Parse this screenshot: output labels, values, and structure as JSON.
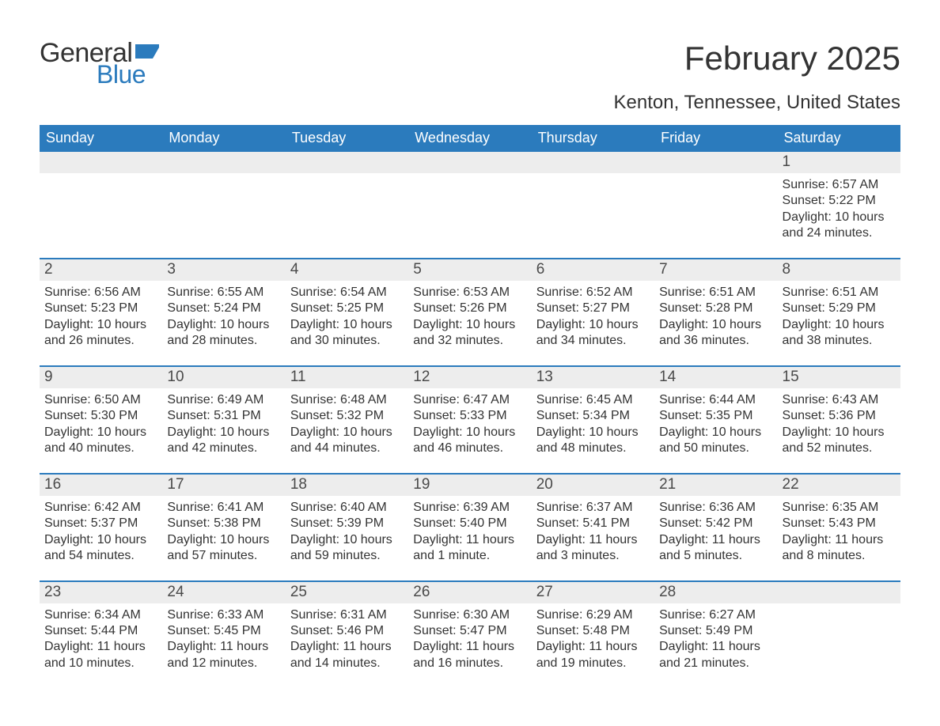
{
  "brand": {
    "part1": "General",
    "part2": "Blue"
  },
  "title": "February 2025",
  "subtitle": "Kenton, Tennessee, United States",
  "colors": {
    "header_bg": "#2b7bbd",
    "header_text": "#ffffff",
    "daynum_bg": "#ededed",
    "daynum_text": "#4a4a4a",
    "body_text": "#333333",
    "row_border": "#2b7bbd",
    "brand_blue": "#2b7bbd"
  },
  "dow": [
    "Sunday",
    "Monday",
    "Tuesday",
    "Wednesday",
    "Thursday",
    "Friday",
    "Saturday"
  ],
  "weeks": [
    [
      null,
      null,
      null,
      null,
      null,
      null,
      {
        "n": "1",
        "sr": "Sunrise: 6:57 AM",
        "ss": "Sunset: 5:22 PM",
        "dl": "Daylight: 10 hours and 24 minutes."
      }
    ],
    [
      {
        "n": "2",
        "sr": "Sunrise: 6:56 AM",
        "ss": "Sunset: 5:23 PM",
        "dl": "Daylight: 10 hours and 26 minutes."
      },
      {
        "n": "3",
        "sr": "Sunrise: 6:55 AM",
        "ss": "Sunset: 5:24 PM",
        "dl": "Daylight: 10 hours and 28 minutes."
      },
      {
        "n": "4",
        "sr": "Sunrise: 6:54 AM",
        "ss": "Sunset: 5:25 PM",
        "dl": "Daylight: 10 hours and 30 minutes."
      },
      {
        "n": "5",
        "sr": "Sunrise: 6:53 AM",
        "ss": "Sunset: 5:26 PM",
        "dl": "Daylight: 10 hours and 32 minutes."
      },
      {
        "n": "6",
        "sr": "Sunrise: 6:52 AM",
        "ss": "Sunset: 5:27 PM",
        "dl": "Daylight: 10 hours and 34 minutes."
      },
      {
        "n": "7",
        "sr": "Sunrise: 6:51 AM",
        "ss": "Sunset: 5:28 PM",
        "dl": "Daylight: 10 hours and 36 minutes."
      },
      {
        "n": "8",
        "sr": "Sunrise: 6:51 AM",
        "ss": "Sunset: 5:29 PM",
        "dl": "Daylight: 10 hours and 38 minutes."
      }
    ],
    [
      {
        "n": "9",
        "sr": "Sunrise: 6:50 AM",
        "ss": "Sunset: 5:30 PM",
        "dl": "Daylight: 10 hours and 40 minutes."
      },
      {
        "n": "10",
        "sr": "Sunrise: 6:49 AM",
        "ss": "Sunset: 5:31 PM",
        "dl": "Daylight: 10 hours and 42 minutes."
      },
      {
        "n": "11",
        "sr": "Sunrise: 6:48 AM",
        "ss": "Sunset: 5:32 PM",
        "dl": "Daylight: 10 hours and 44 minutes."
      },
      {
        "n": "12",
        "sr": "Sunrise: 6:47 AM",
        "ss": "Sunset: 5:33 PM",
        "dl": "Daylight: 10 hours and 46 minutes."
      },
      {
        "n": "13",
        "sr": "Sunrise: 6:45 AM",
        "ss": "Sunset: 5:34 PM",
        "dl": "Daylight: 10 hours and 48 minutes."
      },
      {
        "n": "14",
        "sr": "Sunrise: 6:44 AM",
        "ss": "Sunset: 5:35 PM",
        "dl": "Daylight: 10 hours and 50 minutes."
      },
      {
        "n": "15",
        "sr": "Sunrise: 6:43 AM",
        "ss": "Sunset: 5:36 PM",
        "dl": "Daylight: 10 hours and 52 minutes."
      }
    ],
    [
      {
        "n": "16",
        "sr": "Sunrise: 6:42 AM",
        "ss": "Sunset: 5:37 PM",
        "dl": "Daylight: 10 hours and 54 minutes."
      },
      {
        "n": "17",
        "sr": "Sunrise: 6:41 AM",
        "ss": "Sunset: 5:38 PM",
        "dl": "Daylight: 10 hours and 57 minutes."
      },
      {
        "n": "18",
        "sr": "Sunrise: 6:40 AM",
        "ss": "Sunset: 5:39 PM",
        "dl": "Daylight: 10 hours and 59 minutes."
      },
      {
        "n": "19",
        "sr": "Sunrise: 6:39 AM",
        "ss": "Sunset: 5:40 PM",
        "dl": "Daylight: 11 hours and 1 minute."
      },
      {
        "n": "20",
        "sr": "Sunrise: 6:37 AM",
        "ss": "Sunset: 5:41 PM",
        "dl": "Daylight: 11 hours and 3 minutes."
      },
      {
        "n": "21",
        "sr": "Sunrise: 6:36 AM",
        "ss": "Sunset: 5:42 PM",
        "dl": "Daylight: 11 hours and 5 minutes."
      },
      {
        "n": "22",
        "sr": "Sunrise: 6:35 AM",
        "ss": "Sunset: 5:43 PM",
        "dl": "Daylight: 11 hours and 8 minutes."
      }
    ],
    [
      {
        "n": "23",
        "sr": "Sunrise: 6:34 AM",
        "ss": "Sunset: 5:44 PM",
        "dl": "Daylight: 11 hours and 10 minutes."
      },
      {
        "n": "24",
        "sr": "Sunrise: 6:33 AM",
        "ss": "Sunset: 5:45 PM",
        "dl": "Daylight: 11 hours and 12 minutes."
      },
      {
        "n": "25",
        "sr": "Sunrise: 6:31 AM",
        "ss": "Sunset: 5:46 PM",
        "dl": "Daylight: 11 hours and 14 minutes."
      },
      {
        "n": "26",
        "sr": "Sunrise: 6:30 AM",
        "ss": "Sunset: 5:47 PM",
        "dl": "Daylight: 11 hours and 16 minutes."
      },
      {
        "n": "27",
        "sr": "Sunrise: 6:29 AM",
        "ss": "Sunset: 5:48 PM",
        "dl": "Daylight: 11 hours and 19 minutes."
      },
      {
        "n": "28",
        "sr": "Sunrise: 6:27 AM",
        "ss": "Sunset: 5:49 PM",
        "dl": "Daylight: 11 hours and 21 minutes."
      },
      null
    ]
  ]
}
